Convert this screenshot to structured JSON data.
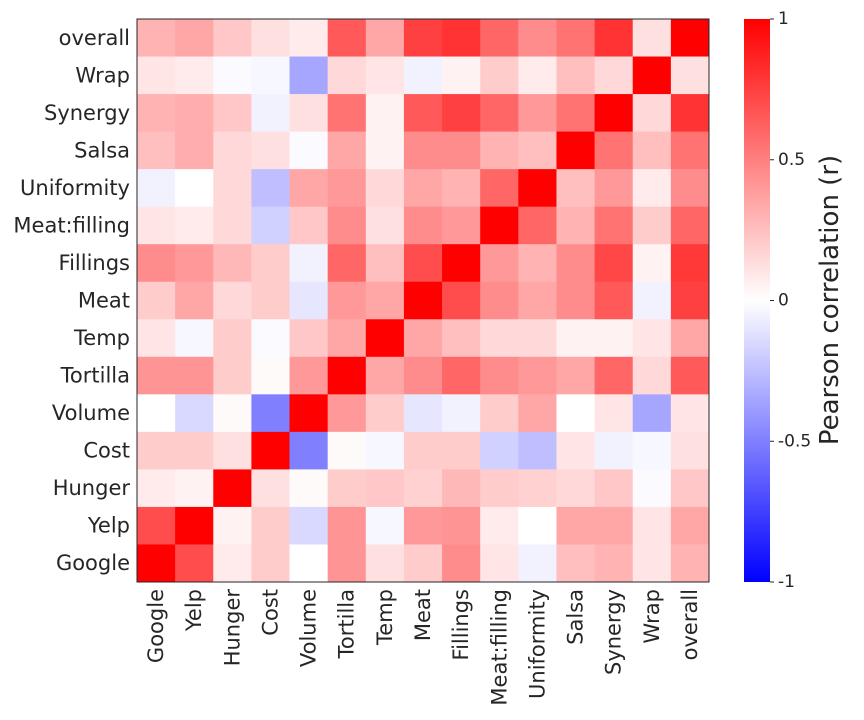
{
  "chart_data": {
    "type": "heatmap",
    "title": "",
    "x_labels": [
      "Google",
      "Yelp",
      "Hunger",
      "Cost",
      "Volume",
      "Tortilla",
      "Temp",
      "Meat",
      "Fillings",
      "Meat:filling",
      "Uniformity",
      "Salsa",
      "Synergy",
      "Wrap",
      "overall"
    ],
    "y_labels": [
      "overall",
      "Wrap",
      "Synergy",
      "Salsa",
      "Uniformity",
      "Meat:filling",
      "Fillings",
      "Meat",
      "Temp",
      "Tortilla",
      "Volume",
      "Cost",
      "Hunger",
      "Yelp",
      "Google"
    ],
    "matrix": [
      [
        0.3,
        0.35,
        0.22,
        0.12,
        0.08,
        0.65,
        0.35,
        0.75,
        0.8,
        0.6,
        0.45,
        0.55,
        0.8,
        0.12,
        1.0
      ],
      [
        0.1,
        0.08,
        -0.02,
        -0.03,
        -0.35,
        0.15,
        0.1,
        -0.05,
        0.05,
        0.2,
        0.08,
        0.25,
        0.15,
        1.0,
        0.12
      ],
      [
        0.3,
        0.32,
        0.22,
        -0.05,
        0.12,
        0.55,
        0.05,
        0.65,
        0.75,
        0.6,
        0.4,
        0.55,
        1.0,
        0.15,
        0.8
      ],
      [
        0.25,
        0.32,
        0.15,
        0.12,
        -0.02,
        0.35,
        0.05,
        0.45,
        0.45,
        0.3,
        0.25,
        1.0,
        0.55,
        0.25,
        0.55
      ],
      [
        -0.05,
        0.0,
        0.15,
        -0.25,
        0.35,
        0.4,
        0.15,
        0.35,
        0.3,
        0.6,
        1.0,
        0.25,
        0.4,
        0.08,
        0.45
      ],
      [
        0.1,
        0.08,
        0.15,
        -0.18,
        0.22,
        0.45,
        0.12,
        0.45,
        0.4,
        1.0,
        0.6,
        0.3,
        0.55,
        0.2,
        0.6
      ],
      [
        0.45,
        0.4,
        0.28,
        0.2,
        -0.05,
        0.6,
        0.25,
        0.7,
        1.0,
        0.4,
        0.3,
        0.45,
        0.72,
        0.05,
        0.78
      ],
      [
        0.2,
        0.35,
        0.15,
        0.2,
        -0.1,
        0.4,
        0.35,
        1.0,
        0.7,
        0.45,
        0.35,
        0.45,
        0.65,
        -0.05,
        0.75
      ],
      [
        0.1,
        -0.03,
        0.2,
        -0.02,
        0.22,
        0.35,
        1.0,
        0.35,
        0.25,
        0.15,
        0.15,
        0.05,
        0.05,
        0.1,
        0.35
      ],
      [
        0.42,
        0.42,
        0.2,
        0.02,
        0.4,
        1.0,
        0.35,
        0.45,
        0.6,
        0.45,
        0.4,
        0.35,
        0.6,
        0.15,
        0.65
      ],
      [
        0.0,
        -0.15,
        0.02,
        -0.5,
        1.0,
        0.4,
        0.2,
        -0.1,
        -0.05,
        0.2,
        0.35,
        0.0,
        0.1,
        -0.35,
        0.1
      ],
      [
        0.2,
        0.2,
        0.12,
        1.0,
        -0.5,
        0.02,
        -0.03,
        0.2,
        0.2,
        -0.18,
        -0.25,
        0.1,
        -0.05,
        -0.03,
        0.12
      ],
      [
        0.08,
        0.05,
        1.0,
        0.12,
        0.02,
        0.2,
        0.22,
        0.18,
        0.28,
        0.2,
        0.18,
        0.15,
        0.22,
        -0.02,
        0.22
      ],
      [
        0.7,
        1.0,
        0.05,
        0.2,
        -0.15,
        0.42,
        -0.03,
        0.4,
        0.42,
        0.08,
        0.0,
        0.35,
        0.35,
        0.1,
        0.35
      ],
      [
        1.0,
        0.7,
        0.08,
        0.2,
        0.0,
        0.42,
        0.12,
        0.2,
        0.45,
        0.1,
        -0.05,
        0.25,
        0.3,
        0.1,
        0.3
      ]
    ],
    "colormap": "bwr",
    "value_range": [
      -1,
      1
    ],
    "colors": {
      "low": "#0000ff",
      "mid": "#ffffff",
      "high": "#ff0000"
    },
    "colorbar": {
      "label": "Pearson correlation (r)",
      "tick_values": [
        1,
        0.5,
        0,
        -0.5,
        -1
      ],
      "tick_labels": [
        "1",
        "0.5",
        "0",
        "-0.5",
        "-1"
      ]
    }
  }
}
